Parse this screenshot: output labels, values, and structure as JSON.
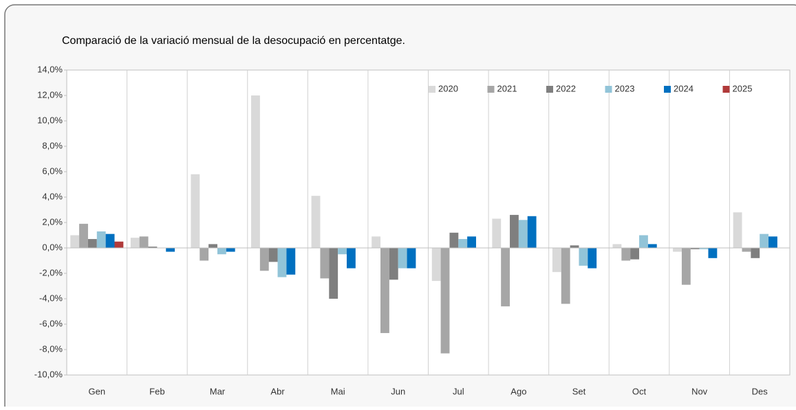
{
  "chart_data": {
    "type": "bar",
    "title": "Comparació de la variació mensual de la desocupació en percentatge.",
    "categories": [
      "Gen",
      "Feb",
      "Mar",
      "Abr",
      "Mai",
      "Jun",
      "Jul",
      "Ago",
      "Set",
      "Oct",
      "Nov",
      "Des"
    ],
    "series": [
      {
        "name": "2020",
        "color": "#d9d9d9",
        "values": [
          1.0,
          0.8,
          5.8,
          12.0,
          4.1,
          0.9,
          -2.6,
          2.3,
          -1.9,
          0.3,
          -0.3,
          2.8
        ]
      },
      {
        "name": "2021",
        "color": "#a6a6a6",
        "values": [
          1.9,
          0.9,
          -1.0,
          -1.8,
          -2.4,
          -6.7,
          -8.3,
          -4.6,
          -4.4,
          -1.0,
          -2.9,
          -0.3
        ]
      },
      {
        "name": "2022",
        "color": "#7f7f7f",
        "values": [
          0.7,
          0.1,
          0.3,
          -1.1,
          -4.0,
          -2.5,
          1.2,
          2.6,
          0.2,
          -0.9,
          -0.1,
          -0.8
        ]
      },
      {
        "name": "2023",
        "color": "#92c4d8",
        "values": [
          1.3,
          0.0,
          -0.5,
          -2.3,
          -0.5,
          -1.6,
          0.7,
          2.2,
          -1.4,
          1.0,
          -0.1,
          1.1
        ]
      },
      {
        "name": "2024",
        "color": "#0070c0",
        "values": [
          1.1,
          -0.3,
          -0.3,
          -2.1,
          -1.6,
          -1.6,
          0.9,
          2.5,
          -1.6,
          0.3,
          -0.8,
          0.9
        ]
      },
      {
        "name": "2025",
        "color": "#b03a3a",
        "values": [
          0.5,
          null,
          null,
          null,
          null,
          null,
          null,
          null,
          null,
          null,
          null,
          null
        ]
      }
    ],
    "ylim": [
      -10,
      14
    ],
    "yticks": [
      {
        "value": -10,
        "label": "-10,0%"
      },
      {
        "value": -8,
        "label": "-8,0%"
      },
      {
        "value": -6,
        "label": "-6,0%"
      },
      {
        "value": -4,
        "label": "-4,0%"
      },
      {
        "value": -2,
        "label": "-2,0%"
      },
      {
        "value": 0,
        "label": "0,0%"
      },
      {
        "value": 2,
        "label": "2,0%"
      },
      {
        "value": 4,
        "label": "4,0%"
      },
      {
        "value": 6,
        "label": "6,0%"
      },
      {
        "value": 8,
        "label": "8,0%"
      },
      {
        "value": 10,
        "label": "10,0%"
      },
      {
        "value": 12,
        "label": "12,0%"
      },
      {
        "value": 14,
        "label": "14,0%"
      }
    ],
    "grid": false,
    "legend": "upper right"
  }
}
